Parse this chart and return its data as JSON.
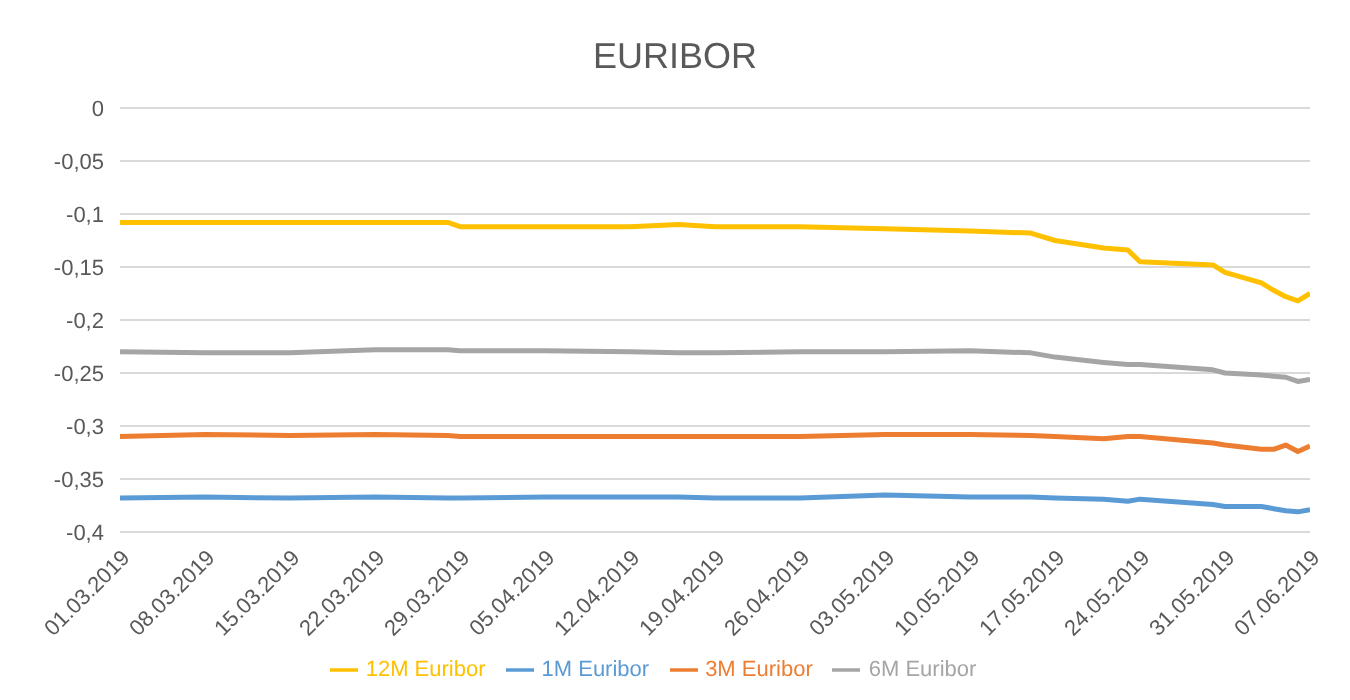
{
  "chart_data": {
    "type": "line",
    "title": "EURIBOR",
    "x": [
      "2019-03-01",
      "2019-03-08",
      "2019-03-15",
      "2019-03-22",
      "2019-03-28",
      "2019-03-29",
      "2019-04-05",
      "2019-04-12",
      "2019-04-16",
      "2019-04-19",
      "2019-04-26",
      "2019-05-03",
      "2019-05-10",
      "2019-05-15",
      "2019-05-17",
      "2019-05-21",
      "2019-05-23",
      "2019-05-24",
      "2019-05-30",
      "2019-05-31",
      "2019-06-03",
      "2019-06-04",
      "2019-06-05",
      "2019-06-06",
      "2019-06-07"
    ],
    "series": [
      {
        "name": "1M Euribor",
        "color": "#5b9bd5",
        "values": [
          -0.368,
          -0.367,
          -0.368,
          -0.367,
          -0.368,
          -0.368,
          -0.367,
          -0.367,
          -0.367,
          -0.368,
          -0.368,
          -0.365,
          -0.367,
          -0.367,
          -0.368,
          -0.369,
          -0.371,
          -0.369,
          -0.374,
          -0.376,
          -0.376,
          -0.378,
          -0.38,
          -0.381,
          -0.379
        ]
      },
      {
        "name": "3M Euribor",
        "color": "#ed7d31",
        "values": [
          -0.31,
          -0.308,
          -0.309,
          -0.308,
          -0.309,
          -0.31,
          -0.31,
          -0.31,
          -0.31,
          -0.31,
          -0.31,
          -0.308,
          -0.308,
          -0.309,
          -0.31,
          -0.312,
          -0.31,
          -0.31,
          -0.316,
          -0.318,
          -0.322,
          -0.322,
          -0.318,
          -0.324,
          -0.319
        ]
      },
      {
        "name": "6M Euribor",
        "color": "#a5a5a5",
        "values": [
          -0.23,
          -0.231,
          -0.231,
          -0.228,
          -0.228,
          -0.229,
          -0.229,
          -0.23,
          -0.231,
          -0.231,
          -0.23,
          -0.23,
          -0.229,
          -0.231,
          -0.235,
          -0.24,
          -0.242,
          -0.242,
          -0.247,
          -0.25,
          -0.252,
          -0.253,
          -0.254,
          -0.258,
          -0.256
        ]
      },
      {
        "name": "12M Euribor",
        "color": "#ffc000",
        "values": [
          -0.108,
          -0.108,
          -0.108,
          -0.108,
          -0.108,
          -0.112,
          -0.112,
          -0.112,
          -0.11,
          -0.112,
          -0.112,
          -0.114,
          -0.116,
          -0.118,
          -0.125,
          -0.132,
          -0.134,
          -0.145,
          -0.148,
          -0.155,
          -0.165,
          -0.172,
          -0.178,
          -0.182,
          -0.175
        ]
      }
    ],
    "xlim": [
      "2019-03-01",
      "2019-06-07"
    ],
    "xticks": [
      {
        "value": "2019-03-01",
        "label": "01.03.2019"
      },
      {
        "value": "2019-03-08",
        "label": "08.03.2019"
      },
      {
        "value": "2019-03-15",
        "label": "15.03.2019"
      },
      {
        "value": "2019-03-22",
        "label": "22.03.2019"
      },
      {
        "value": "2019-03-29",
        "label": "29.03.2019"
      },
      {
        "value": "2019-04-05",
        "label": "05.04.2019"
      },
      {
        "value": "2019-04-12",
        "label": "12.04.2019"
      },
      {
        "value": "2019-04-19",
        "label": "19.04.2019"
      },
      {
        "value": "2019-04-26",
        "label": "26.04.2019"
      },
      {
        "value": "2019-05-03",
        "label": "03.05.2019"
      },
      {
        "value": "2019-05-10",
        "label": "10.05.2019"
      },
      {
        "value": "2019-05-17",
        "label": "17.05.2019"
      },
      {
        "value": "2019-05-24",
        "label": "24.05.2019"
      },
      {
        "value": "2019-05-31",
        "label": "31.05.2019"
      },
      {
        "value": "2019-06-07",
        "label": "07.06.2019"
      }
    ],
    "ylim": [
      -0.4,
      0
    ],
    "yticks": [
      {
        "value": -0.4,
        "label": "-0,4"
      },
      {
        "value": -0.35,
        "label": "-0,35"
      },
      {
        "value": -0.3,
        "label": "-0,3"
      },
      {
        "value": -0.25,
        "label": "-0,25"
      },
      {
        "value": -0.2,
        "label": "-0,2"
      },
      {
        "value": -0.15,
        "label": "-0,15"
      },
      {
        "value": -0.1,
        "label": "-0,1"
      },
      {
        "value": -0.05,
        "label": "-0,05"
      },
      {
        "value": 0,
        "label": "0"
      }
    ],
    "grid": "y",
    "legend": "bottom",
    "marker": "none",
    "line_style": "solid"
  }
}
